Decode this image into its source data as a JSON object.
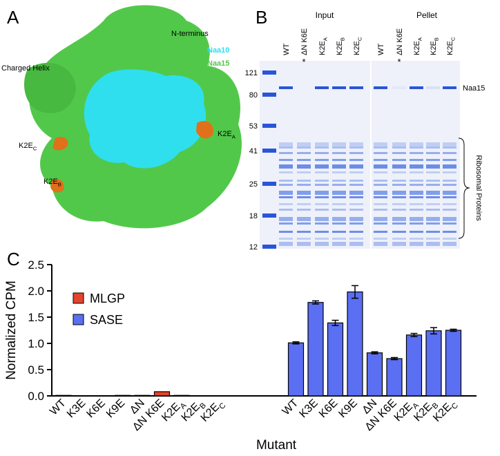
{
  "panel_a": {
    "label": "A",
    "n_terminus": "N-terminus",
    "naa10": "Naa10",
    "naa15": "Naa15",
    "charged_helix": "Charged Helix",
    "sites": [
      {
        "text": "K2E",
        "sub": "C"
      },
      {
        "text": "K2E",
        "sub": "A"
      },
      {
        "text": "K2E",
        "sub": "B"
      }
    ]
  },
  "panel_b": {
    "label": "B",
    "groups": [
      "Input",
      "Pellet"
    ],
    "lanes": [
      "WT",
      "ΔN K6E",
      {
        "text": "K2E",
        "sub": "A"
      },
      {
        "text": "K2E",
        "sub": "B"
      },
      {
        "text": "K2E",
        "sub": "C"
      },
      "WT",
      "ΔN K6E",
      {
        "text": "K2E",
        "sub": "A"
      },
      {
        "text": "K2E",
        "sub": "B"
      },
      {
        "text": "K2E",
        "sub": "C"
      }
    ],
    "asterisks": [
      "*",
      "*"
    ],
    "markers": [
      121,
      80,
      53,
      41,
      25,
      18,
      12
    ],
    "band_label": "Naa15",
    "bracket_label": "Ribosomal Proteins"
  },
  "panel_c": {
    "label": "C"
  },
  "chart_data": {
    "type": "bar",
    "y_label": "Normalized CPM",
    "x_label": "Mutant",
    "categories": [
      "WT",
      "K3E",
      "K6E",
      "K9E",
      "ΔN",
      "ΔN K6E",
      {
        "text": "K2E",
        "sub": "A"
      },
      {
        "text": "K2E",
        "sub": "B"
      },
      {
        "text": "K2E",
        "sub": "C"
      },
      "WT",
      "K3E",
      "K6E",
      "K9E",
      "ΔN",
      "ΔN K6E",
      {
        "text": "K2E",
        "sub": "A"
      },
      {
        "text": "K2E",
        "sub": "B"
      },
      {
        "text": "K2E",
        "sub": "C"
      }
    ],
    "series": [
      {
        "name": "MLGP",
        "color": "#e4442c",
        "values": [
          0.01,
          0,
          0,
          0.01,
          0.01,
          0.08,
          0.01,
          0,
          0,
          null,
          null,
          null,
          null,
          null,
          null,
          null,
          null,
          null
        ]
      },
      {
        "name": "SASE",
        "color": "#5a6ff2",
        "values": [
          null,
          null,
          null,
          null,
          null,
          null,
          null,
          null,
          null,
          1.01,
          1.78,
          1.39,
          1.98,
          0.82,
          0.71,
          1.16,
          1.24,
          1.25
        ],
        "errors": [
          null,
          null,
          null,
          null,
          null,
          null,
          null,
          null,
          null,
          0.02,
          0.03,
          0.05,
          0.12,
          0.02,
          0.02,
          0.03,
          0.06,
          0.02
        ]
      }
    ],
    "ylim": [
      0,
      2.5
    ],
    "yticks": [
      {
        "value": 0,
        "label": "0.0"
      },
      {
        "value": 0.5,
        "label": "0.5"
      },
      {
        "value": 1,
        "label": "1.0"
      },
      {
        "value": 1.5,
        "label": "1.5"
      },
      {
        "value": 2,
        "label": "2.0"
      },
      {
        "value": 2.5,
        "label": "2.5"
      }
    ],
    "legend": "top-left"
  }
}
